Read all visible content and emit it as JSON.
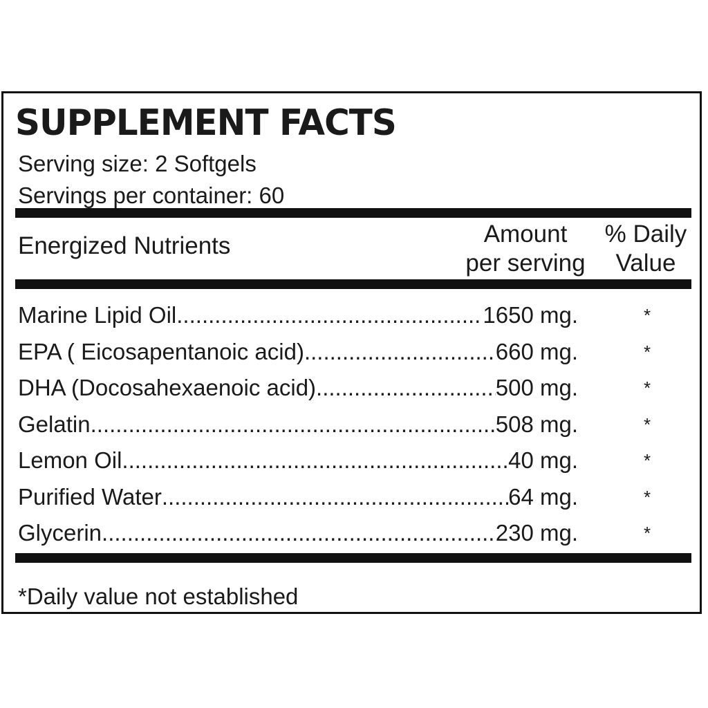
{
  "title": "SUPPLEMENT FACTS",
  "serving_size": "Serving size: 2 Softgels",
  "servings_per_container": "Servings per container: 60",
  "table_header": {
    "nutrients_label": "Energized Nutrients",
    "amount_line1": "Amount",
    "amount_line2": "per serving",
    "dv_line1": "% Daily",
    "dv_line2": "Value"
  },
  "rows": [
    {
      "name": "Marine Lipid Oil",
      "amount": "1650  mg.",
      "dv": "*"
    },
    {
      "name": "EPA ( Eicosapentanoic acid)",
      "amount": "660  mg.",
      "dv": "*"
    },
    {
      "name": "DHA (Docosahexaenoic acid)",
      "amount": "500  mg.",
      "dv": "*"
    },
    {
      "name": "Gelatin",
      "amount": "508  mg.",
      "dv": "*"
    },
    {
      "name": "Lemon Oil",
      "amount": "40  mg.",
      "dv": "*"
    },
    {
      "name": "Purified Water ",
      "amount": "64  mg.",
      "dv": "*"
    },
    {
      "name": "Glycerin ",
      "amount": "230  mg.",
      "dv": "*"
    }
  ],
  "footnote": "*Daily value not established"
}
